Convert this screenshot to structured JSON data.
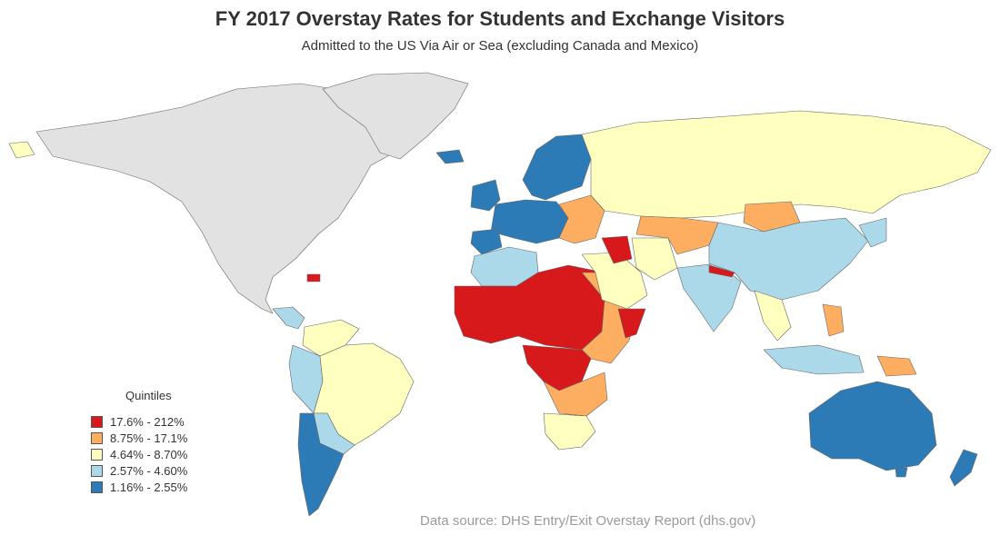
{
  "title": "FY 2017 Overstay Rates for Students and Exchange Visitors",
  "subtitle": "Admitted to the US Via Air or Sea (excluding Canada and Mexico)",
  "legend": {
    "title": "Quintiles",
    "items": [
      {
        "label": "17.6% - 212%",
        "color": "#d7191c"
      },
      {
        "label": "8.75% - 17.1%",
        "color": "#fdae61"
      },
      {
        "label": "4.64% - 8.70%",
        "color": "#ffffbf"
      },
      {
        "label": "2.57% - 4.60%",
        "color": "#abd9e9"
      },
      {
        "label": "1.16% - 2.55%",
        "color": "#2c7bb6"
      }
    ]
  },
  "source": "Data source: DHS Entry/Exit Overstay Report (dhs.gov)",
  "colors": {
    "excluded": "#e2e2e2",
    "border": "#555555"
  }
}
